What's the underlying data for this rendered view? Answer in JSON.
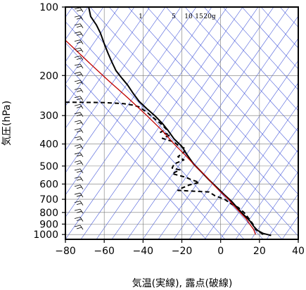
{
  "chart_data": {
    "type": "line",
    "title": "",
    "xlabel": "気温(実線), 露点(破線)",
    "ylabel": "気圧(hPa)",
    "x_ticks": [
      -80,
      -60,
      -40,
      -20,
      0,
      20,
      40
    ],
    "y_ticks": [
      100,
      200,
      300,
      400,
      500,
      600,
      700,
      800,
      900,
      1000
    ],
    "xlim": [
      -80,
      40
    ],
    "ylim": [
      1050,
      100
    ],
    "y_scale": "log",
    "mixing_ratio_labels": [
      "1",
      "5",
      "10",
      "15",
      "20g"
    ],
    "series": [
      {
        "style": "solid",
        "color": "#000000",
        "points": [
          [
            -68,
            100
          ],
          [
            -67,
            110
          ],
          [
            -64,
            120
          ],
          [
            -62,
            130
          ],
          [
            -60,
            145
          ],
          [
            -58,
            160
          ],
          [
            -56,
            175
          ],
          [
            -54,
            190
          ],
          [
            -51,
            205
          ],
          [
            -48,
            220
          ],
          [
            -45,
            240
          ],
          [
            -42,
            260
          ],
          [
            -38,
            280
          ],
          [
            -34,
            300
          ],
          [
            -30,
            325
          ],
          [
            -27,
            350
          ],
          [
            -24,
            380
          ],
          [
            -20,
            410
          ],
          [
            -17,
            450
          ],
          [
            -14,
            490
          ],
          [
            -10,
            530
          ],
          [
            -6,
            575
          ],
          [
            -2,
            620
          ],
          [
            2,
            670
          ],
          [
            6,
            720
          ],
          [
            9,
            770
          ],
          [
            12,
            820
          ],
          [
            15,
            870
          ],
          [
            17,
            920
          ],
          [
            19,
            960
          ],
          [
            22,
            990
          ],
          [
            26,
            1010
          ]
        ]
      },
      {
        "style": "dashed",
        "color": "#000000",
        "points": [
          [
            -80,
            262
          ],
          [
            -60,
            263
          ],
          [
            -50,
            266
          ],
          [
            -45,
            270
          ],
          [
            -42,
            275
          ],
          [
            -38,
            290
          ],
          [
            -35,
            305
          ],
          [
            -33,
            315
          ],
          [
            -30,
            330
          ],
          [
            -28,
            345
          ],
          [
            -31,
            355
          ],
          [
            -26,
            365
          ],
          [
            -30,
            378
          ],
          [
            -24,
            392
          ],
          [
            -22,
            405
          ],
          [
            -18,
            420
          ],
          [
            -19,
            435
          ],
          [
            -22,
            455
          ],
          [
            -19,
            470
          ],
          [
            -24,
            490
          ],
          [
            -25,
            510
          ],
          [
            -21,
            520
          ],
          [
            -25,
            540
          ],
          [
            -18,
            560
          ],
          [
            -15,
            575
          ],
          [
            -11,
            590
          ],
          [
            -16,
            605
          ],
          [
            -20,
            625
          ],
          [
            -22,
            640
          ],
          [
            -14,
            645
          ],
          [
            -6,
            650
          ],
          [
            -3,
            675
          ],
          [
            2,
            700
          ],
          [
            5,
            730
          ],
          [
            9,
            760
          ],
          [
            12,
            800
          ],
          [
            15,
            860
          ],
          [
            17,
            910
          ],
          [
            18,
            950
          ],
          [
            22,
            1000
          ]
        ]
      },
      {
        "style": "solid",
        "color": "#c00000",
        "points": [
          [
            -80,
            140
          ],
          [
            -68,
            175
          ],
          [
            -58,
            210
          ],
          [
            -48,
            250
          ],
          [
            -38,
            300
          ],
          [
            -30,
            350
          ],
          [
            -24,
            400
          ],
          [
            -18,
            450
          ],
          [
            -13,
            500
          ],
          [
            -8,
            550
          ],
          [
            -4,
            600
          ],
          [
            0,
            650
          ],
          [
            4,
            700
          ],
          [
            7,
            750
          ],
          [
            10,
            800
          ],
          [
            13,
            850
          ],
          [
            15,
            900
          ],
          [
            17,
            950
          ],
          [
            18,
            1000
          ]
        ]
      }
    ],
    "grid": true
  }
}
